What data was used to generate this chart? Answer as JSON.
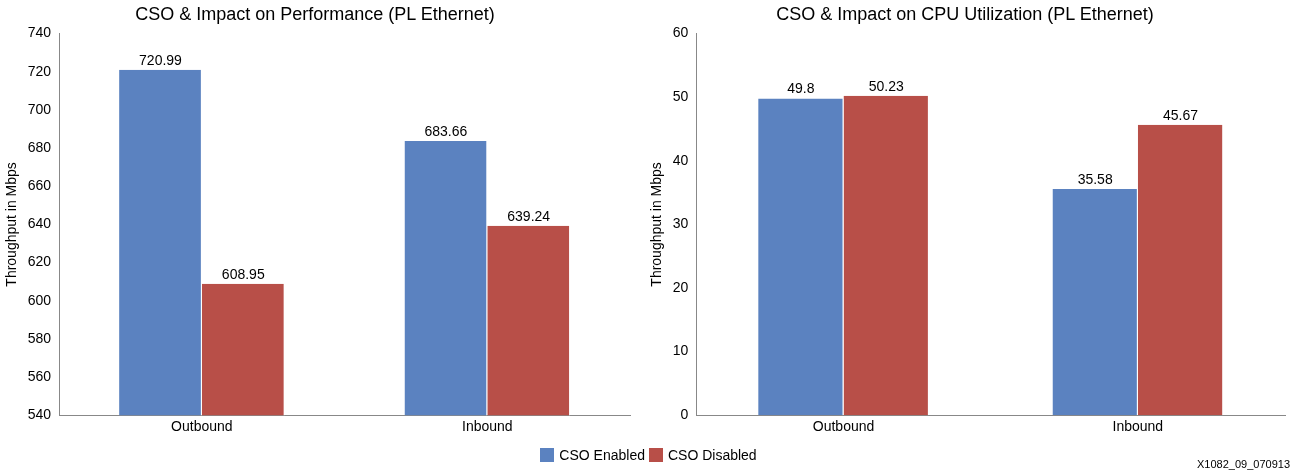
{
  "chart_data": [
    {
      "type": "bar",
      "title": "CSO & Impact on Performance (PL Ethernet)",
      "ylabel": "Throughput in Mbps",
      "categories": [
        "Outbound",
        "Inbound"
      ],
      "series": [
        {
          "name": "CSO Enabled",
          "color": "#5b82c0",
          "values": [
            720.99,
            683.66
          ]
        },
        {
          "name": "CSO Disabled",
          "color": "#b84f48",
          "values": [
            608.95,
            639.24
          ]
        }
      ],
      "ylim": [
        540,
        740
      ],
      "yticks": [
        540,
        560,
        580,
        600,
        620,
        640,
        660,
        680,
        700,
        720,
        740
      ],
      "grid": false,
      "data_labels": true,
      "legend": "bottom"
    },
    {
      "type": "bar",
      "title": "CSO & Impact on CPU Utilization (PL Ethernet)",
      "ylabel": "Throughput in Mbps",
      "categories": [
        "Outbound",
        "Inbound"
      ],
      "series": [
        {
          "color": "#5b82c0",
          "values": [
            49.8,
            35.58
          ]
        },
        {
          "color": "#b84f48",
          "values": [
            50.23,
            45.67
          ]
        }
      ],
      "ylim": [
        0,
        60
      ],
      "yticks": [
        0,
        10,
        20,
        30,
        40,
        50,
        60
      ],
      "grid": false,
      "data_labels": true,
      "annotations": [
        "X1082_09_070913"
      ]
    }
  ]
}
